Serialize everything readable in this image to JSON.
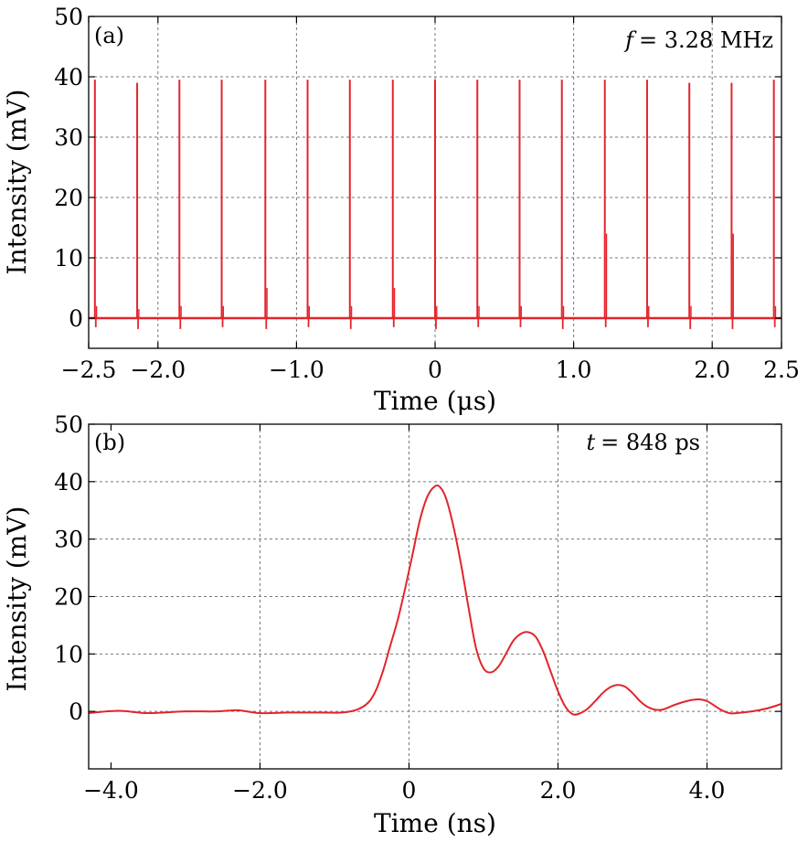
{
  "chart_data": [
    {
      "type": "line",
      "panel_label": "(a)",
      "annotation": {
        "symbol": "f",
        "value": "= 3.28 MHz"
      },
      "xlabel": "Time (μs)",
      "ylabel": "Intensity (mV)",
      "xlim": [
        -2.5,
        2.5
      ],
      "ylim": [
        -5,
        50
      ],
      "xticks": [
        -2.5,
        -2.0,
        -1.0,
        0,
        1.0,
        2.0,
        2.5
      ],
      "xtick_labels": [
        "−2.5",
        "−2.0",
        "−1.0",
        "0",
        "1.0",
        "2.0",
        "2.5"
      ],
      "yticks": [
        0,
        10,
        20,
        30,
        40,
        50
      ],
      "ytick_labels": [
        "0",
        "10",
        "20",
        "30",
        "40",
        "50"
      ],
      "x_gridlines": [
        -2.0,
        -1.0,
        0,
        1.0,
        2.0
      ],
      "y_gridlines": [
        10,
        20,
        30,
        40
      ],
      "grid": true,
      "line_color": "#e3242b",
      "series": [
        {
          "baseline_mV": 0,
          "pulse_times": [
            -2.455,
            -2.15,
            -1.845,
            -1.54,
            -1.225,
            -0.92,
            -0.615,
            -0.305,
            0.0,
            0.305,
            0.61,
            0.915,
            1.225,
            1.53,
            1.835,
            2.14,
            2.445
          ],
          "pulse_peaks": [
            39.5,
            39,
            39.5,
            39.5,
            39.5,
            39.5,
            39.5,
            39.5,
            39.5,
            39.5,
            39.5,
            39.5,
            39.5,
            39.5,
            39,
            39,
            39.5
          ],
          "pulse_secondary_peaks": [
            2,
            1.5,
            2,
            2,
            5,
            2,
            2,
            5,
            2,
            2,
            2,
            2,
            14,
            2,
            2,
            14,
            2
          ],
          "pulse_negative_dips": [
            -1.5,
            -1.8,
            -1.8,
            -1.5,
            -1.8,
            -1.5,
            -1.8,
            -1.5,
            -1.8,
            -1.5,
            -1.5,
            -1.8,
            -1.5,
            -1.5,
            -1.8,
            -1.8,
            -1.5
          ]
        }
      ]
    },
    {
      "type": "line",
      "panel_label": "(b)",
      "annotation": {
        "symbol": "t",
        "value": "= 848 ps"
      },
      "xlabel": "Time (ns)",
      "ylabel": "Intensity (mV)",
      "xlim": [
        -4.3,
        5.0
      ],
      "ylim": [
        -10,
        50
      ],
      "xticks": [
        -4.0,
        -2.0,
        0,
        2.0,
        4.0
      ],
      "xtick_labels": [
        "−4.0",
        "−2.0",
        "0",
        "2.0",
        "4.0"
      ],
      "yticks": [
        0,
        10,
        20,
        30,
        40,
        50
      ],
      "ytick_labels": [
        "0",
        "10",
        "20",
        "30",
        "40",
        "50"
      ],
      "x_gridlines": [
        -2.0,
        0,
        2.0,
        4.0
      ],
      "y_gridlines": [
        0,
        10,
        20,
        30,
        40
      ],
      "grid": true,
      "line_color": "#e3242b",
      "series": [
        {
          "x": [
            -4.3,
            -3.9,
            -3.5,
            -3.0,
            -2.6,
            -2.3,
            -2.0,
            -1.6,
            -1.2,
            -0.9,
            -0.7,
            -0.55,
            -0.45,
            -0.35,
            -0.25,
            -0.15,
            -0.05,
            0.05,
            0.15,
            0.25,
            0.35,
            0.42,
            0.5,
            0.6,
            0.7,
            0.8,
            0.9,
            1.0,
            1.1,
            1.2,
            1.3,
            1.4,
            1.5,
            1.6,
            1.7,
            1.8,
            1.9,
            2.0,
            2.1,
            2.2,
            2.3,
            2.4,
            2.5,
            2.6,
            2.7,
            2.8,
            2.9,
            3.0,
            3.1,
            3.2,
            3.3,
            3.4,
            3.5,
            3.6,
            3.7,
            3.8,
            3.9,
            4.0,
            4.1,
            4.2,
            4.3,
            4.4,
            4.6,
            4.8,
            5.0
          ],
          "y": [
            -0.3,
            0.1,
            -0.3,
            0.0,
            0.0,
            0.2,
            -0.3,
            -0.2,
            -0.2,
            -0.2,
            0.3,
            1.5,
            3.5,
            7.0,
            11.5,
            16.0,
            21.5,
            27.5,
            33.5,
            37.5,
            39.2,
            39.0,
            37.0,
            32.0,
            25.5,
            18.0,
            11.0,
            7.5,
            6.8,
            7.8,
            10.0,
            12.3,
            13.5,
            13.8,
            13.0,
            10.5,
            7.0,
            3.5,
            0.8,
            -0.5,
            -0.3,
            0.5,
            1.8,
            3.2,
            4.2,
            4.6,
            4.3,
            3.2,
            1.8,
            0.8,
            0.3,
            0.3,
            0.8,
            1.3,
            1.7,
            2.0,
            2.1,
            1.8,
            1.0,
            0.2,
            -0.3,
            -0.3,
            0.0,
            0.5,
            1.3
          ]
        }
      ]
    }
  ]
}
